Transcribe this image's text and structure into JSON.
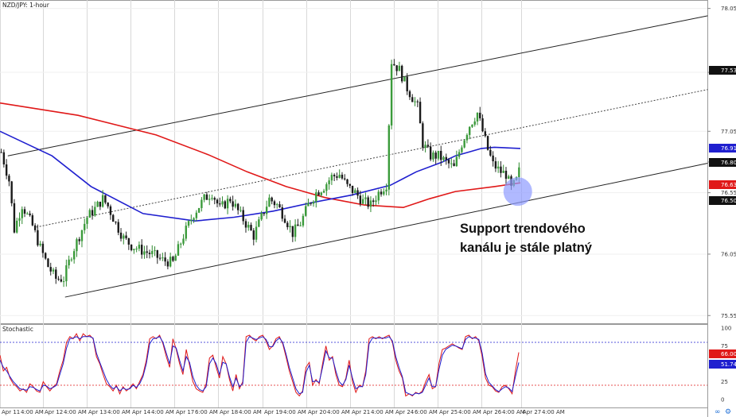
{
  "chart_data": [
    {
      "type": "candlestick",
      "title": "NZD/JPY: 1-hour",
      "ylim": [
        75.5,
        78.08
      ],
      "y_ticks": [
        "78.05",
        "77.53",
        "77.05",
        "76.80",
        "76.55",
        "76.05",
        "75.55"
      ],
      "x_ticks": [
        "Apr 11",
        "4:00 AM",
        "Apr 12",
        "4:00 AM",
        "Apr 13",
        "4:00 AM",
        "Apr 14",
        "4:00 AM",
        "Apr 17",
        "6:00 AM",
        "Apr 18",
        "4:00 AM",
        "Apr 19",
        "4:00 AM",
        "Apr 20",
        "4:00 AM",
        "Apr 21",
        "4:00 AM",
        "Apr 24",
        "6:00 AM",
        "Apr 25",
        "4:00 AM",
        "Apr 26",
        "4:00 AM",
        "Apr 27",
        "4:00 AM"
      ],
      "price_tags": [
        {
          "label": "77.53",
          "color": "#111111"
        },
        {
          "label": "76.91",
          "color": "#1f1fcf"
        },
        {
          "label": "76.80",
          "color": "#111111"
        },
        {
          "label": "76.63",
          "color": "#e01818"
        },
        {
          "label": "76.50",
          "color": "#111111"
        }
      ],
      "series": [
        {
          "kind": "ma",
          "color": "#e01818",
          "x": [
            0,
            30,
            60,
            80,
            95,
            110,
            125,
            140,
            155,
            165,
            175,
            190,
            200
          ],
          "values": [
            77.28,
            77.18,
            77.02,
            76.86,
            76.72,
            76.6,
            76.51,
            76.45,
            76.43,
            76.5,
            76.56,
            76.6,
            76.63
          ]
        },
        {
          "kind": "ma",
          "color": "#1f1fcf",
          "x": [
            0,
            20,
            35,
            55,
            75,
            90,
            105,
            120,
            135,
            150,
            160,
            170,
            175,
            180,
            185,
            190,
            200
          ],
          "values": [
            77.05,
            76.85,
            76.6,
            76.38,
            76.32,
            76.35,
            76.4,
            76.47,
            76.53,
            76.61,
            76.72,
            76.8,
            76.85,
            76.88,
            76.91,
            76.92,
            76.91
          ]
        },
        {
          "kind": "channel",
          "color": "#222222",
          "x": [
            3,
            272
          ],
          "values": [
            76.85,
            77.99
          ]
        },
        {
          "kind": "channel",
          "color": "#222222",
          "x": [
            25,
            272
          ],
          "values": [
            75.7,
            76.79
          ]
        },
        {
          "kind": "channel-mid",
          "color": "#444444",
          "x": [
            14,
            272
          ],
          "values": [
            76.27,
            77.39
          ]
        }
      ],
      "candle_path": [
        [
          0,
          76.88
        ],
        [
          3,
          76.65
        ],
        [
          5,
          76.25
        ],
        [
          8,
          76.45
        ],
        [
          12,
          76.28
        ],
        [
          15,
          76.1
        ],
        [
          18,
          75.95
        ],
        [
          21,
          75.85
        ],
        [
          24,
          75.85
        ],
        [
          27,
          76.05
        ],
        [
          30,
          76.2
        ],
        [
          33,
          76.35
        ],
        [
          36,
          76.42
        ],
        [
          39,
          76.5
        ],
        [
          41,
          76.44
        ],
        [
          44,
          76.3
        ],
        [
          47,
          76.18
        ],
        [
          50,
          76.12
        ],
        [
          54,
          76.08
        ],
        [
          58,
          76.05
        ],
        [
          62,
          76.0
        ],
        [
          66,
          75.98
        ],
        [
          70,
          76.2
        ],
        [
          74,
          76.38
        ],
        [
          78,
          76.5
        ],
        [
          81,
          76.55
        ],
        [
          84,
          76.42
        ],
        [
          88,
          76.5
        ],
        [
          91,
          76.4
        ],
        [
          94,
          76.3
        ],
        [
          97,
          76.2
        ],
        [
          100,
          76.35
        ],
        [
          103,
          76.5
        ],
        [
          106,
          76.45
        ],
        [
          109,
          76.35
        ],
        [
          112,
          76.22
        ],
        [
          115,
          76.3
        ],
        [
          118,
          76.45
        ],
        [
          121,
          76.55
        ],
        [
          124,
          76.6
        ],
        [
          127,
          76.68
        ],
        [
          130,
          76.7
        ],
        [
          133,
          76.6
        ],
        [
          136,
          76.55
        ],
        [
          139,
          76.48
        ],
        [
          142,
          76.45
        ],
        [
          145,
          76.55
        ],
        [
          148,
          76.62
        ],
        [
          150,
          77.62
        ],
        [
          153,
          77.55
        ],
        [
          156,
          77.4
        ],
        [
          160,
          77.25
        ],
        [
          162,
          76.95
        ],
        [
          165,
          76.85
        ],
        [
          168,
          76.85
        ],
        [
          171,
          76.8
        ],
        [
          174,
          76.75
        ],
        [
          177,
          76.95
        ],
        [
          180,
          77.1
        ],
        [
          183,
          77.2
        ],
        [
          185,
          77.05
        ],
        [
          187,
          76.9
        ],
        [
          189,
          76.78
        ],
        [
          192,
          76.72
        ],
        [
          194,
          76.7
        ],
        [
          196,
          76.58
        ],
        [
          198,
          76.65
        ],
        [
          200,
          76.8
        ]
      ],
      "highlight": {
        "x": 199,
        "y": 76.56,
        "color": "#8e9bff"
      },
      "annotation": {
        "lines": [
          "Support trendového",
          "kanálu je stále platný"
        ]
      }
    },
    {
      "type": "line",
      "title": "Stochastic",
      "ylim": [
        0,
        100
      ],
      "y_ticks": [
        "100",
        "75",
        "25",
        "0"
      ],
      "levels": [
        {
          "value": 80,
          "color": "#1f1fcf"
        },
        {
          "value": 20,
          "color": "#e01818"
        }
      ],
      "tags": [
        {
          "label": "66.00",
          "color": "#e01818"
        },
        {
          "label": "51.74",
          "color": "#1f1fcf"
        }
      ],
      "series": [
        {
          "name": "",
          "color": "#e01818",
          "values": [
            62,
            40,
            45,
            30,
            22,
            18,
            12,
            15,
            10,
            22,
            18,
            12,
            10,
            25,
            18,
            12,
            18,
            22,
            40,
            55,
            80,
            88,
            85,
            92,
            82,
            92,
            88,
            90,
            85,
            60,
            50,
            35,
            22,
            18,
            12,
            20,
            8,
            18,
            12,
            16,
            22,
            15,
            25,
            35,
            55,
            85,
            88,
            85,
            90,
            78,
            60,
            45,
            85,
            70,
            50,
            35,
            70,
            48,
            25,
            15,
            12,
            10,
            22,
            58,
            62,
            45,
            30,
            60,
            50,
            28,
            12,
            35,
            15,
            25,
            88,
            90,
            85,
            82,
            88,
            90,
            82,
            70,
            75,
            85,
            88,
            78,
            60,
            40,
            25,
            10,
            5,
            12,
            45,
            52,
            20,
            28,
            22,
            50,
            75,
            55,
            60,
            35,
            20,
            18,
            30,
            55,
            25,
            10,
            20,
            18,
            40,
            85,
            88,
            85,
            88,
            85,
            88,
            90,
            80,
            55,
            40,
            30,
            5,
            8,
            5,
            10,
            8,
            12,
            25,
            35,
            15,
            18,
            50,
            70,
            72,
            75,
            78,
            75,
            72,
            70,
            88,
            90,
            85,
            88,
            82,
            60,
            30,
            20,
            18,
            12,
            10,
            18,
            20,
            15,
            8,
            40,
            66
          ]
        },
        {
          "name": "",
          "color": "#1f1fcf",
          "values": [
            55,
            45,
            40,
            32,
            25,
            20,
            15,
            14,
            13,
            18,
            17,
            14,
            12,
            20,
            19,
            15,
            17,
            20,
            35,
            50,
            72,
            85,
            86,
            88,
            85,
            88,
            88,
            88,
            86,
            65,
            52,
            40,
            28,
            20,
            15,
            18,
            12,
            16,
            14,
            15,
            20,
            17,
            22,
            32,
            50,
            78,
            85,
            86,
            88,
            80,
            65,
            50,
            75,
            72,
            55,
            40,
            60,
            52,
            32,
            20,
            14,
            12,
            18,
            50,
            58,
            50,
            35,
            52,
            50,
            32,
            18,
            30,
            18,
            22,
            80,
            88,
            86,
            84,
            86,
            88,
            84,
            74,
            74,
            82,
            86,
            80,
            64,
            45,
            30,
            15,
            8,
            10,
            38,
            48,
            25,
            26,
            24,
            45,
            68,
            58,
            58,
            40,
            25,
            20,
            28,
            48,
            30,
            15,
            18,
            18,
            35,
            78,
            86,
            86,
            86,
            86,
            86,
            88,
            82,
            60,
            45,
            32,
            10,
            8,
            6,
            9,
            8,
            10,
            20,
            30,
            18,
            18,
            42,
            62,
            70,
            73,
            76,
            75,
            73,
            71,
            84,
            88,
            86,
            86,
            84,
            65,
            36,
            24,
            19,
            14,
            11,
            15,
            18,
            16,
            11,
            32,
            51.74
          ]
        }
      ]
    }
  ]
}
